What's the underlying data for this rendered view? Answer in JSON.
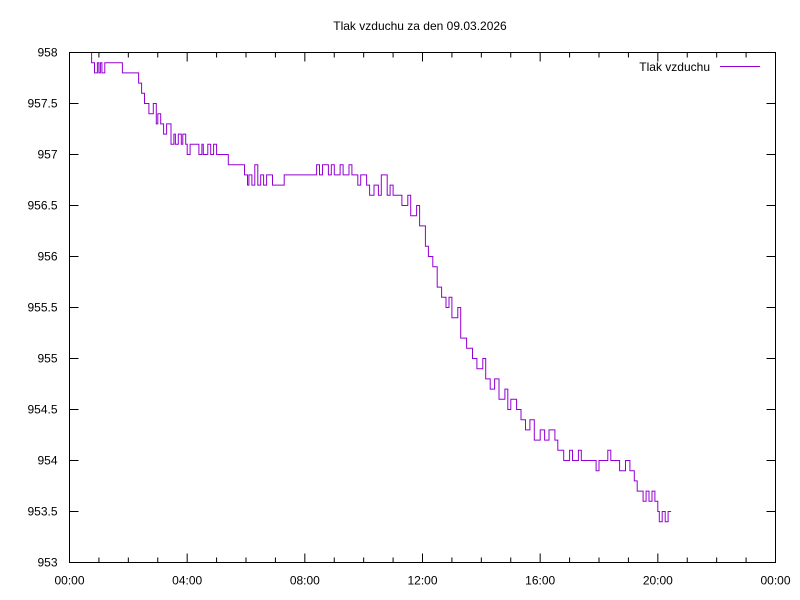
{
  "chart_data": {
    "type": "line",
    "title": "Tlak vzduchu za den 09.03.2026",
    "xlabel": "",
    "ylabel": "",
    "xlim": [
      0,
      24
    ],
    "ylim": [
      953,
      958
    ],
    "x_ticks": [
      0,
      4,
      8,
      12,
      16,
      20,
      24
    ],
    "x_tick_labels": [
      "00:00",
      "04:00",
      "08:00",
      "12:00",
      "16:00",
      "20:00",
      "00:00"
    ],
    "y_ticks": [
      953,
      953.5,
      954,
      954.5,
      955,
      955.5,
      956,
      956.5,
      957,
      957.5,
      958
    ],
    "y_tick_labels": [
      "953",
      "953.5",
      "954",
      "954.5",
      "955",
      "955.5",
      "956",
      "956.5",
      "957",
      "957.5",
      "958"
    ],
    "grid": false,
    "legend_position": "top-right",
    "series": [
      {
        "name": "Tlak vzduchu",
        "color": "#9400d3",
        "style": "steps",
        "x": [
          0.65,
          0.75,
          0.85,
          0.95,
          1.0,
          1.05,
          1.1,
          1.2,
          1.8,
          2.35,
          2.45,
          2.55,
          2.7,
          2.85,
          2.95,
          3.0,
          3.1,
          3.2,
          3.3,
          3.45,
          3.55,
          3.6,
          3.7,
          3.8,
          3.85,
          3.95,
          4.0,
          4.1,
          4.4,
          4.5,
          4.55,
          4.7,
          4.8,
          4.9,
          5.0,
          5.1,
          5.4,
          5.5,
          5.95,
          6.05,
          6.1,
          6.2,
          6.3,
          6.4,
          6.5,
          6.6,
          6.7,
          6.9,
          7.3,
          7.4,
          8.4,
          8.5,
          8.6,
          8.8,
          8.9,
          9.0,
          9.2,
          9.3,
          9.5,
          9.6,
          9.8,
          9.9,
          10.1,
          10.2,
          10.35,
          10.5,
          10.6,
          10.8,
          10.9,
          11.0,
          11.2,
          11.3,
          11.5,
          11.6,
          11.8,
          11.9,
          12.1,
          12.2,
          12.35,
          12.5,
          12.65,
          12.8,
          12.9,
          13.0,
          13.2,
          13.3,
          13.5,
          13.7,
          13.85,
          14.05,
          14.15,
          14.3,
          14.45,
          14.6,
          14.8,
          14.9,
          15.0,
          15.2,
          15.35,
          15.5,
          15.65,
          15.8,
          16.0,
          16.15,
          16.3,
          16.5,
          16.6,
          16.8,
          17.0,
          17.1,
          17.3,
          17.4,
          17.6,
          17.9,
          18.0,
          18.1,
          18.3,
          18.4,
          18.7,
          18.9,
          19.05,
          19.2,
          19.3,
          19.5,
          19.6,
          19.7,
          19.8,
          19.9,
          20.0,
          20.05,
          20.15,
          20.25,
          20.35,
          20.45
        ],
        "y": [
          958.0,
          957.9,
          957.8,
          957.9,
          957.8,
          957.9,
          957.8,
          957.9,
          957.8,
          957.7,
          957.6,
          957.5,
          957.4,
          957.5,
          957.3,
          957.4,
          957.3,
          957.2,
          957.3,
          957.1,
          957.2,
          957.1,
          957.2,
          957.1,
          957.2,
          957.1,
          957.0,
          957.1,
          957.0,
          957.1,
          957.0,
          957.1,
          957.0,
          957.1,
          957.0,
          957.0,
          956.9,
          956.9,
          956.8,
          956.7,
          956.8,
          956.7,
          956.9,
          956.7,
          956.8,
          956.7,
          956.8,
          956.7,
          956.8,
          956.8,
          956.9,
          956.8,
          956.9,
          956.8,
          956.9,
          956.8,
          956.9,
          956.8,
          956.9,
          956.8,
          956.7,
          956.8,
          956.7,
          956.6,
          956.7,
          956.6,
          956.8,
          956.6,
          956.7,
          956.6,
          956.6,
          956.5,
          956.6,
          956.4,
          956.5,
          956.3,
          956.1,
          956.0,
          955.9,
          955.7,
          955.6,
          955.5,
          955.6,
          955.4,
          955.5,
          955.2,
          955.1,
          955.0,
          954.9,
          955.0,
          954.8,
          954.7,
          954.8,
          954.6,
          954.7,
          954.5,
          954.6,
          954.5,
          954.4,
          954.3,
          954.4,
          954.2,
          954.3,
          954.2,
          954.3,
          954.2,
          954.1,
          954.0,
          954.1,
          954.0,
          954.1,
          954.0,
          954.0,
          953.9,
          954.0,
          954.0,
          954.1,
          954.0,
          953.9,
          954.0,
          953.9,
          953.8,
          953.7,
          953.6,
          953.7,
          953.6,
          953.7,
          953.6,
          953.5,
          953.4,
          953.5,
          953.4,
          953.5,
          953.5
        ]
      }
    ]
  }
}
